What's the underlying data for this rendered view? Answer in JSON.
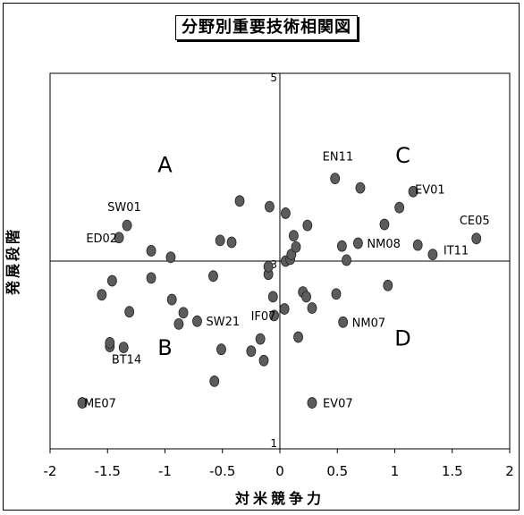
{
  "chart_data": {
    "type": "scatter",
    "title": "分野別重要技術相関図",
    "xlabel": "対米競争力",
    "ylabel": "発展段階",
    "xlim": [
      -2,
      2
    ],
    "ylim": [
      1,
      5
    ],
    "x_ticks": [
      "-2",
      "-1.5",
      "-1",
      "-0.5",
      "0",
      "0.5",
      "1",
      "1.5",
      "2"
    ],
    "y_ticks": [
      "5",
      "3",
      "1"
    ],
    "quadrants": [
      "A",
      "B",
      "C",
      "D"
    ],
    "grid": false,
    "points": [
      {
        "x": -1.72,
        "y": 1.49,
        "label": "ME07"
      },
      {
        "x": -1.48,
        "y": 2.09,
        "label": "BT14"
      },
      {
        "x": -1.48,
        "y": 2.13
      },
      {
        "x": -1.36,
        "y": 2.08
      },
      {
        "x": -1.55,
        "y": 2.64
      },
      {
        "x": -1.46,
        "y": 2.79
      },
      {
        "x": -1.31,
        "y": 2.46
      },
      {
        "x": -1.4,
        "y": 3.25,
        "label": "ED02"
      },
      {
        "x": -1.33,
        "y": 3.38,
        "label": "SW01"
      },
      {
        "x": -1.12,
        "y": 3.11
      },
      {
        "x": -1.12,
        "y": 2.82
      },
      {
        "x": -0.95,
        "y": 3.04
      },
      {
        "x": -0.94,
        "y": 2.59
      },
      {
        "x": -0.88,
        "y": 2.33
      },
      {
        "x": -0.84,
        "y": 2.45
      },
      {
        "x": -0.72,
        "y": 2.36,
        "label": "SW21"
      },
      {
        "x": -0.58,
        "y": 2.84
      },
      {
        "x": -0.52,
        "y": 3.22
      },
      {
        "x": -0.42,
        "y": 3.2
      },
      {
        "x": -0.35,
        "y": 3.64
      },
      {
        "x": -0.51,
        "y": 2.06
      },
      {
        "x": -0.57,
        "y": 1.72
      },
      {
        "x": -0.25,
        "y": 2.04
      },
      {
        "x": -0.14,
        "y": 1.94
      },
      {
        "x": -0.17,
        "y": 2.17
      },
      {
        "x": -0.05,
        "y": 2.42,
        "label": "IF07"
      },
      {
        "x": -0.1,
        "y": 2.86
      },
      {
        "x": -0.1,
        "y": 2.94
      },
      {
        "x": -0.09,
        "y": 3.58
      },
      {
        "x": -0.06,
        "y": 2.62
      },
      {
        "x": 0.04,
        "y": 2.49
      },
      {
        "x": 0.05,
        "y": 3.0
      },
      {
        "x": 0.09,
        "y": 3.02
      },
      {
        "x": 0.1,
        "y": 3.07
      },
      {
        "x": 0.14,
        "y": 3.15
      },
      {
        "x": 0.12,
        "y": 3.27
      },
      {
        "x": 0.05,
        "y": 3.51
      },
      {
        "x": 0.24,
        "y": 3.38
      },
      {
        "x": 0.2,
        "y": 2.67
      },
      {
        "x": 0.23,
        "y": 2.62
      },
      {
        "x": 0.28,
        "y": 2.5
      },
      {
        "x": 0.16,
        "y": 2.19
      },
      {
        "x": 0.28,
        "y": 1.49,
        "label": "EV07"
      },
      {
        "x": 0.48,
        "y": 3.88,
        "label": "EN11"
      },
      {
        "x": 0.7,
        "y": 3.78
      },
      {
        "x": 0.49,
        "y": 2.65
      },
      {
        "x": 0.54,
        "y": 3.16
      },
      {
        "x": 0.58,
        "y": 3.01
      },
      {
        "x": 0.55,
        "y": 2.35,
        "label": "NM07"
      },
      {
        "x": 0.68,
        "y": 3.19,
        "label": "NM08"
      },
      {
        "x": 0.94,
        "y": 2.74
      },
      {
        "x": 0.91,
        "y": 3.39
      },
      {
        "x": 1.04,
        "y": 3.57
      },
      {
        "x": 1.16,
        "y": 3.74,
        "label": "EV01"
      },
      {
        "x": 1.2,
        "y": 3.17
      },
      {
        "x": 1.33,
        "y": 3.07,
        "label": "IT11"
      },
      {
        "x": 1.71,
        "y": 3.24,
        "label": "CE05"
      }
    ]
  }
}
